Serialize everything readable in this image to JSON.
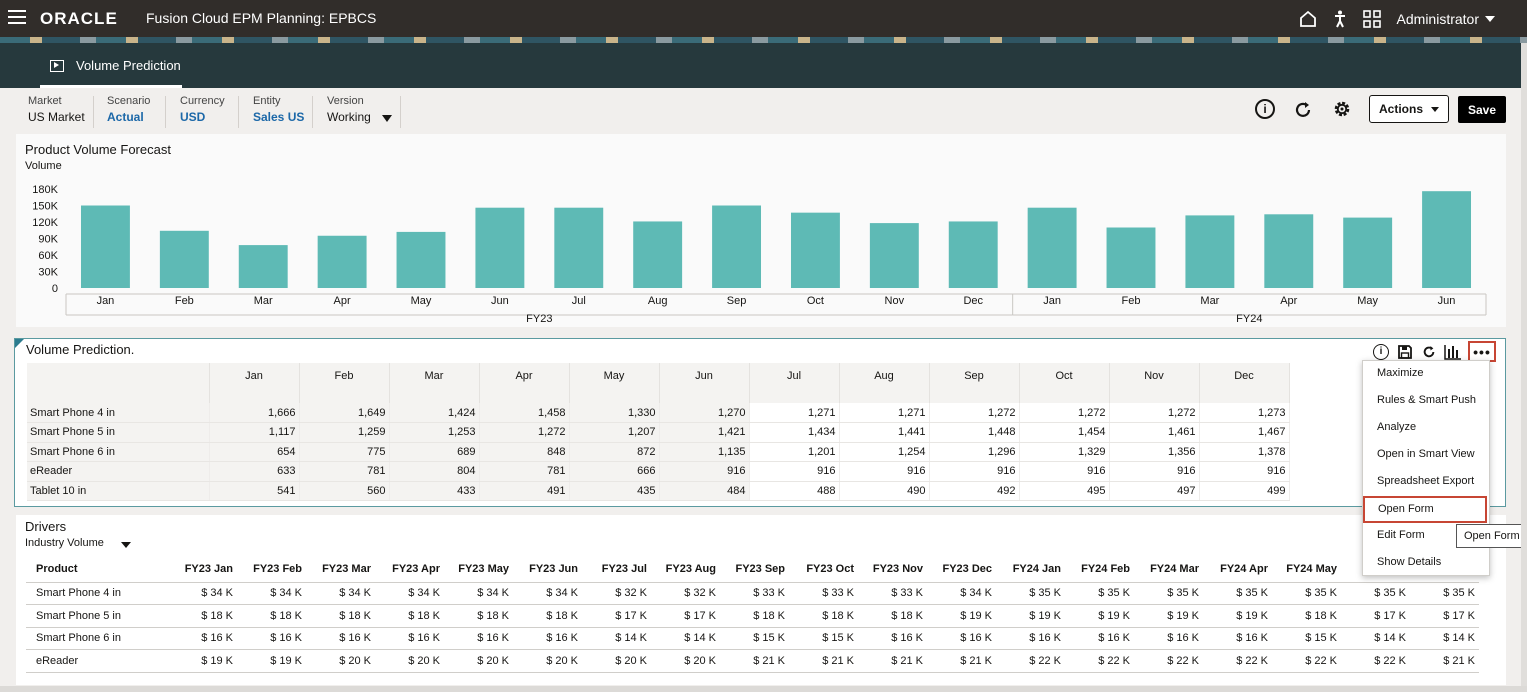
{
  "header": {
    "logo": "ORACLE",
    "app_title": "Fusion Cloud EPM Planning:  EPBCS",
    "user": "Administrator",
    "icons": [
      "home-icon",
      "accessibility-icon",
      "navigator-grid-icon"
    ]
  },
  "tab": {
    "label": "Volume Prediction",
    "icon": "dashboard-icon"
  },
  "pov": [
    {
      "label": "Market",
      "value": "US Market",
      "highlight": false
    },
    {
      "label": "Scenario",
      "value": "Actual",
      "highlight": true
    },
    {
      "label": "Currency",
      "value": "USD",
      "highlight": true
    },
    {
      "label": "Entity",
      "value": "Sales US",
      "highlight": true
    },
    {
      "label": "Version",
      "value": "Working",
      "highlight": false
    }
  ],
  "toolbar": {
    "actions_label": "Actions",
    "save_label": "Save"
  },
  "chart_panel": {
    "title": "Product Volume Forecast",
    "subtitle": "Volume"
  },
  "chart_data": {
    "type": "bar",
    "categories": [
      "Jan",
      "Feb",
      "Mar",
      "Apr",
      "May",
      "Jun",
      "Jul",
      "Aug",
      "Sep",
      "Oct",
      "Nov",
      "Dec",
      "Jan",
      "Feb",
      "Mar",
      "Apr",
      "May",
      "Jun"
    ],
    "groups": [
      {
        "label": "FY23",
        "start": 0,
        "count": 12
      },
      {
        "label": "FY24",
        "start": 12,
        "count": 6
      }
    ],
    "values": [
      150000,
      104000,
      78000,
      95000,
      102000,
      146000,
      146000,
      121000,
      150000,
      137000,
      118000,
      121000,
      146000,
      110000,
      132000,
      134000,
      128000,
      176000
    ],
    "ylabel": "Volume",
    "yticks": [
      "180K",
      "150K",
      "120K",
      "90K",
      "60K",
      "30K",
      "0"
    ],
    "ylim": [
      0,
      180000
    ],
    "bar_color": "#5ebab5"
  },
  "prediction": {
    "title": "Volume Prediction.",
    "columns": [
      "Jan",
      "Feb",
      "Mar",
      "Apr",
      "May",
      "Jun",
      "Jul",
      "Aug",
      "Sep",
      "Oct",
      "Nov",
      "Dec"
    ],
    "rows": [
      {
        "name": "Smart Phone 4 in",
        "values": [
          "1,666",
          "1,649",
          "1,424",
          "1,458",
          "1,330",
          "1,270",
          "1,271",
          "1,271",
          "1,272",
          "1,272",
          "1,272",
          "1,273"
        ]
      },
      {
        "name": "Smart Phone 5 in",
        "values": [
          "1,117",
          "1,259",
          "1,253",
          "1,272",
          "1,207",
          "1,421",
          "1,434",
          "1,441",
          "1,448",
          "1,454",
          "1,461",
          "1,467"
        ]
      },
      {
        "name": "Smart Phone 6 in",
        "values": [
          "654",
          "775",
          "689",
          "848",
          "872",
          "1,135",
          "1,201",
          "1,254",
          "1,296",
          "1,329",
          "1,356",
          "1,378"
        ]
      },
      {
        "name": "eReader",
        "values": [
          "633",
          "781",
          "804",
          "781",
          "666",
          "916",
          "916",
          "916",
          "916",
          "916",
          "916",
          "916"
        ]
      },
      {
        "name": "Tablet 10 in",
        "values": [
          "541",
          "560",
          "433",
          "491",
          "435",
          "484",
          "488",
          "490",
          "492",
          "495",
          "497",
          "499"
        ]
      }
    ]
  },
  "drivers": {
    "title": "Drivers",
    "selector": "Industry Volume",
    "product_header": "Product",
    "columns": [
      "FY23 Jan",
      "FY23 Feb",
      "FY23 Mar",
      "FY23 Apr",
      "FY23 May",
      "FY23 Jun",
      "FY23 Jul",
      "FY23 Aug",
      "FY23 Sep",
      "FY23 Oct",
      "FY23 Nov",
      "FY23 Dec",
      "FY24 Jan",
      "FY24 Feb",
      "FY24 Mar",
      "FY24 Apr",
      "FY24 May",
      "",
      ""
    ],
    "rows": [
      {
        "name": "Smart Phone 4 in",
        "values": [
          "$ 34 K",
          "$ 34 K",
          "$ 34 K",
          "$ 34 K",
          "$ 34 K",
          "$ 34 K",
          "$ 32 K",
          "$ 32 K",
          "$ 33 K",
          "$ 33 K",
          "$ 33 K",
          "$ 34 K",
          "$ 35 K",
          "$ 35 K",
          "$ 35 K",
          "$ 35 K",
          "$ 35 K",
          "$ 35 K",
          "$ 35 K"
        ]
      },
      {
        "name": "Smart Phone 5 in",
        "values": [
          "$ 18 K",
          "$ 18 K",
          "$ 18 K",
          "$ 18 K",
          "$ 18 K",
          "$ 18 K",
          "$ 17 K",
          "$ 17 K",
          "$ 18 K",
          "$ 18 K",
          "$ 18 K",
          "$ 19 K",
          "$ 19 K",
          "$ 19 K",
          "$ 19 K",
          "$ 19 K",
          "$ 18 K",
          "$ 17 K",
          "$ 17 K"
        ]
      },
      {
        "name": "Smart Phone 6 in",
        "values": [
          "$ 16 K",
          "$ 16 K",
          "$ 16 K",
          "$ 16 K",
          "$ 16 K",
          "$ 16 K",
          "$ 14 K",
          "$ 14 K",
          "$ 15 K",
          "$ 15 K",
          "$ 16 K",
          "$ 16 K",
          "$ 16 K",
          "$ 16 K",
          "$ 16 K",
          "$ 16 K",
          "$ 15 K",
          "$ 14 K",
          "$ 14 K"
        ]
      },
      {
        "name": "eReader",
        "values": [
          "$ 19 K",
          "$ 19 K",
          "$ 20 K",
          "$ 20 K",
          "$ 20 K",
          "$ 20 K",
          "$ 20 K",
          "$ 20 K",
          "$ 21 K",
          "$ 21 K",
          "$ 21 K",
          "$ 21 K",
          "$ 22 K",
          "$ 22 K",
          "$ 22 K",
          "$ 22 K",
          "$ 22 K",
          "$ 22 K",
          "$ 21 K"
        ]
      }
    ]
  },
  "more_menu": {
    "items": [
      "Maximize",
      "Rules & Smart Push",
      "Analyze",
      "Open in Smart View",
      "Spreadsheet Export",
      "Open Form",
      "Edit Form",
      "Show Details"
    ],
    "highlighted": "Open Form",
    "tooltip": "Open Form"
  }
}
